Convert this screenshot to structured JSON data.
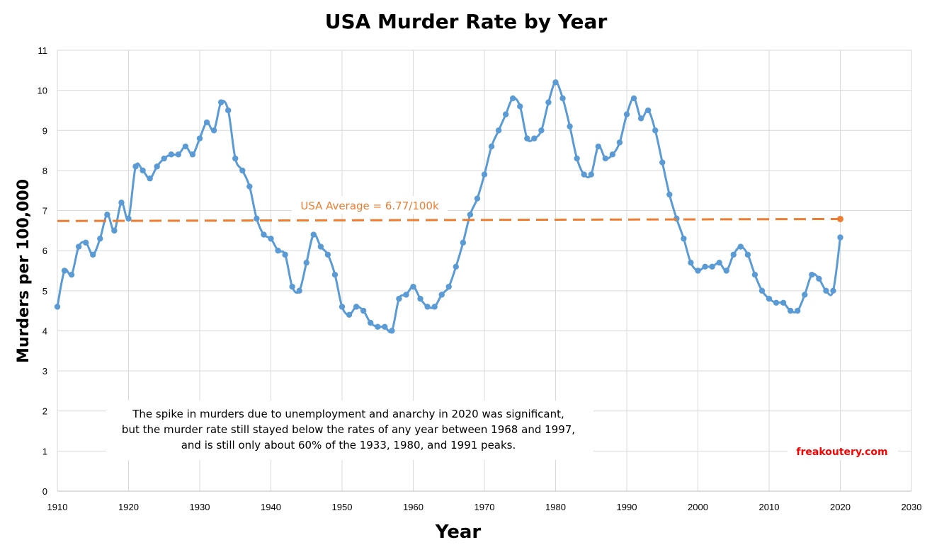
{
  "chart_data": {
    "type": "line",
    "title": "USA Murder Rate by Year",
    "xlabel": "Year",
    "ylabel": "Murders per 100,000",
    "xlim": [
      1910,
      2030
    ],
    "ylim": [
      0,
      11
    ],
    "xticks": [
      "1910",
      "1920",
      "1930",
      "1940",
      "1950",
      "1960",
      "1970",
      "1980",
      "1990",
      "2000",
      "2010",
      "2020",
      "2030"
    ],
    "yticks": [
      "0",
      "1",
      "2",
      "3",
      "4",
      "5",
      "6",
      "7",
      "8",
      "9",
      "10",
      "11"
    ],
    "grid": true,
    "series": [
      {
        "name": "Murder rate",
        "color": "#5b9bd5",
        "x": [
          1910,
          1911,
          1912,
          1913,
          1914,
          1915,
          1916,
          1917,
          1918,
          1919,
          1920,
          1921,
          1922,
          1923,
          1924,
          1925,
          1926,
          1927,
          1928,
          1929,
          1930,
          1931,
          1932,
          1933,
          1934,
          1935,
          1936,
          1937,
          1938,
          1939,
          1940,
          1941,
          1942,
          1943,
          1944,
          1945,
          1946,
          1947,
          1948,
          1949,
          1950,
          1951,
          1952,
          1953,
          1954,
          1955,
          1956,
          1957,
          1958,
          1959,
          1960,
          1961,
          1962,
          1963,
          1964,
          1965,
          1966,
          1967,
          1968,
          1969,
          1970,
          1971,
          1972,
          1973,
          1974,
          1975,
          1976,
          1977,
          1978,
          1979,
          1980,
          1981,
          1982,
          1983,
          1984,
          1985,
          1986,
          1987,
          1988,
          1989,
          1990,
          1991,
          1992,
          1993,
          1994,
          1995,
          1996,
          1997,
          1998,
          1999,
          2000,
          2001,
          2002,
          2003,
          2004,
          2005,
          2006,
          2007,
          2008,
          2009,
          2010,
          2011,
          2012,
          2013,
          2014,
          2015,
          2016,
          2017,
          2018,
          2019,
          2020
        ],
        "values": [
          4.6,
          5.5,
          5.4,
          6.1,
          6.2,
          5.9,
          6.3,
          6.9,
          6.5,
          7.2,
          6.8,
          8.1,
          8.0,
          7.8,
          8.1,
          8.3,
          8.4,
          8.4,
          8.6,
          8.4,
          8.8,
          9.2,
          9.0,
          9.7,
          9.5,
          8.3,
          8.0,
          7.6,
          6.8,
          6.4,
          6.3,
          6.0,
          5.9,
          5.1,
          5.0,
          5.7,
          6.4,
          6.1,
          5.9,
          5.4,
          4.6,
          4.4,
          4.6,
          4.5,
          4.2,
          4.1,
          4.1,
          4.0,
          4.8,
          4.9,
          5.1,
          4.8,
          4.6,
          4.6,
          4.9,
          5.1,
          5.6,
          6.2,
          6.9,
          7.3,
          7.9,
          8.6,
          9.0,
          9.4,
          9.8,
          9.6,
          8.8,
          8.8,
          9.0,
          9.7,
          10.2,
          9.8,
          9.1,
          8.3,
          7.9,
          7.9,
          8.6,
          8.3,
          8.4,
          8.7,
          9.4,
          9.8,
          9.3,
          9.5,
          9.0,
          8.2,
          7.4,
          6.8,
          6.3,
          5.7,
          5.5,
          5.6,
          5.6,
          5.7,
          5.5,
          5.9,
          6.1,
          5.9,
          5.4,
          5.0,
          4.8,
          4.7,
          4.7,
          4.5,
          4.5,
          4.9,
          5.4,
          5.3,
          5.0,
          5.0,
          6.33
        ]
      },
      {
        "name": "USA Average",
        "color": "#ed7d31",
        "x": [
          1910,
          2020
        ],
        "values": [
          6.74,
          6.79
        ]
      }
    ],
    "annotations": {
      "average_label": "USA Average = 6.77/100k",
      "note_lines": [
        "The spike in murders due to unemployment and anarchy in 2020 was significant,",
        "but the murder rate still stayed below the rates of any year between 1968 and 1997,",
        "and is still only about 60% of the 1933, 1980, and 1991 peaks."
      ],
      "credit": "freakoutery.com"
    }
  },
  "colors": {
    "series": "#5b9bd5",
    "average": "#ed7d31",
    "credit": "#ff0000",
    "grid": "#d9d9d9"
  }
}
